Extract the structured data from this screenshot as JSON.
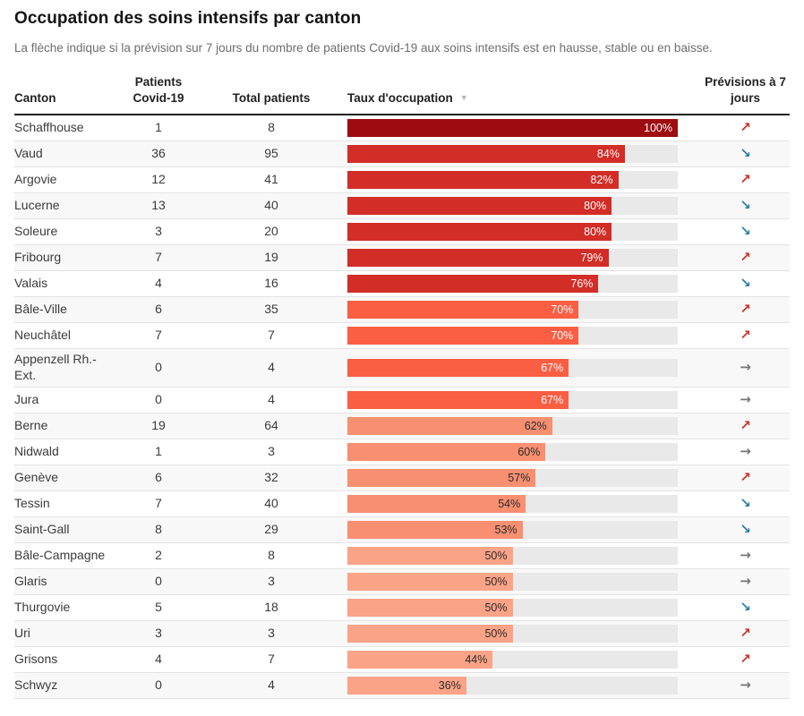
{
  "page": {
    "title": "Occupation des soins intensifs par canton",
    "subtitle": "La flèche indique si la prévision sur 7 jours du nombre de patients Covid-19 aux soins intensifs est en hausse, stable ou en baisse."
  },
  "table": {
    "headers": {
      "canton": "Canton",
      "covid": "Patients Covid-19",
      "total": "Total patients",
      "rate": "Taux d'occupation",
      "sort_indicator": "▼",
      "forecast": "Prévisions à 7 jours"
    },
    "sort": {
      "column": "Taux d'occupation",
      "direction": "desc"
    }
  },
  "trends": {
    "hausse": {
      "glyph": "↗",
      "color": "#c8342d"
    },
    "baisse": {
      "glyph": "↘",
      "color": "#2e7fab"
    },
    "stable": {
      "glyph": "→",
      "color": "#767676"
    }
  },
  "colors": {
    "occupancy_scale": [
      {
        "min": 90,
        "bar": "#9e0b10",
        "label": "#ffffff"
      },
      {
        "min": 72,
        "bar": "#d22d26",
        "label": "#ffffff"
      },
      {
        "min": 64,
        "bar": "#fa5e43",
        "label": "#ffffff"
      },
      {
        "min": 52,
        "bar": "#f78f70",
        "label": "#2b2b2b"
      },
      {
        "min": 0,
        "bar": "#fba387",
        "label": "#2b2b2b"
      }
    ],
    "bar_track": "#e9e9e9",
    "row_alt_bg": "#f8f8f8",
    "header_border": "#222222"
  },
  "chart_data": {
    "type": "table",
    "title": "Occupation des soins intensifs par canton",
    "columns": [
      "Canton",
      "Patients Covid-19",
      "Total patients",
      "Taux d'occupation (%)",
      "Prévisions à 7 jours"
    ],
    "bar_column": "Taux d'occupation (%)",
    "bar_range": [
      0,
      100
    ],
    "rows": [
      {
        "canton": "Schaffhouse",
        "covid": 1,
        "total": 8,
        "rate": 100,
        "trend": "hausse"
      },
      {
        "canton": "Vaud",
        "covid": 36,
        "total": 95,
        "rate": 84,
        "trend": "baisse"
      },
      {
        "canton": "Argovie",
        "covid": 12,
        "total": 41,
        "rate": 82,
        "trend": "hausse"
      },
      {
        "canton": "Lucerne",
        "covid": 13,
        "total": 40,
        "rate": 80,
        "trend": "baisse"
      },
      {
        "canton": "Soleure",
        "covid": 3,
        "total": 20,
        "rate": 80,
        "trend": "baisse"
      },
      {
        "canton": "Fribourg",
        "covid": 7,
        "total": 19,
        "rate": 79,
        "trend": "hausse"
      },
      {
        "canton": "Valais",
        "covid": 4,
        "total": 16,
        "rate": 76,
        "trend": "baisse"
      },
      {
        "canton": "Bâle-Ville",
        "covid": 6,
        "total": 35,
        "rate": 70,
        "trend": "hausse"
      },
      {
        "canton": "Neuchâtel",
        "covid": 7,
        "total": 7,
        "rate": 70,
        "trend": "hausse"
      },
      {
        "canton": "Appenzell Rh.-Ext.",
        "covid": 0,
        "total": 4,
        "rate": 67,
        "trend": "stable"
      },
      {
        "canton": "Jura",
        "covid": 0,
        "total": 4,
        "rate": 67,
        "trend": "stable"
      },
      {
        "canton": "Berne",
        "covid": 19,
        "total": 64,
        "rate": 62,
        "trend": "hausse"
      },
      {
        "canton": "Nidwald",
        "covid": 1,
        "total": 3,
        "rate": 60,
        "trend": "stable"
      },
      {
        "canton": "Genève",
        "covid": 6,
        "total": 32,
        "rate": 57,
        "trend": "hausse"
      },
      {
        "canton": "Tessin",
        "covid": 7,
        "total": 40,
        "rate": 54,
        "trend": "baisse"
      },
      {
        "canton": "Saint-Gall",
        "covid": 8,
        "total": 29,
        "rate": 53,
        "trend": "baisse"
      },
      {
        "canton": "Bâle-Campagne",
        "covid": 2,
        "total": 8,
        "rate": 50,
        "trend": "stable"
      },
      {
        "canton": "Glaris",
        "covid": 0,
        "total": 3,
        "rate": 50,
        "trend": "stable"
      },
      {
        "canton": "Thurgovie",
        "covid": 5,
        "total": 18,
        "rate": 50,
        "trend": "baisse"
      },
      {
        "canton": "Uri",
        "covid": 3,
        "total": 3,
        "rate": 50,
        "trend": "hausse"
      },
      {
        "canton": "Grisons",
        "covid": 4,
        "total": 7,
        "rate": 44,
        "trend": "hausse"
      },
      {
        "canton": "Schwyz",
        "covid": 0,
        "total": 4,
        "rate": 36,
        "trend": "stable"
      }
    ]
  }
}
